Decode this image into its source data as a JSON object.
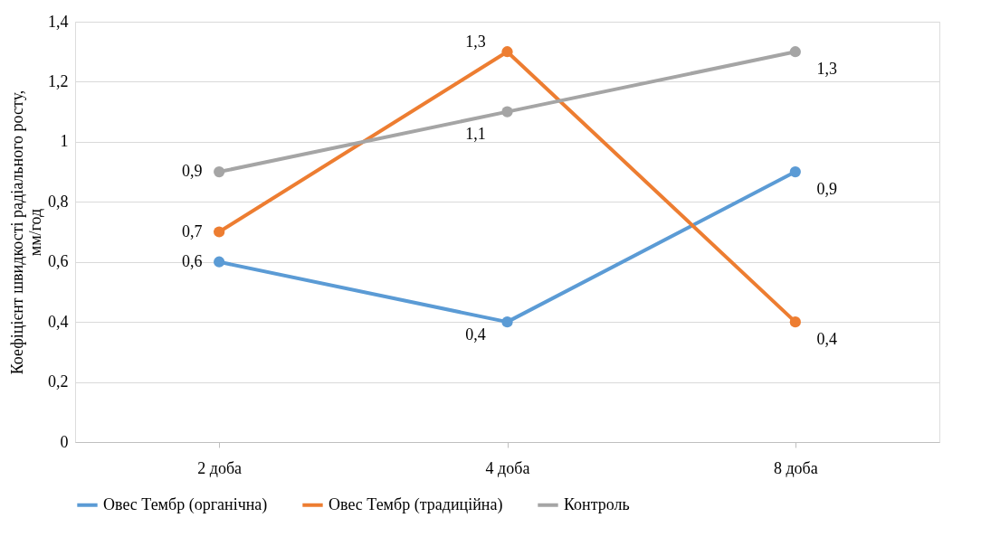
{
  "chart_data": {
    "type": "line",
    "ylabel": "Коефіцієнт швидкості радіального росту, мм/год",
    "categories": [
      "2 доба",
      "4 доба",
      "8 доба"
    ],
    "series": [
      {
        "name": "Овес Тембр (органічна)",
        "color": "#5b9bd5",
        "values": [
          0.6,
          0.4,
          0.9
        ],
        "value_labels": [
          "0,6",
          "0,4",
          "0,9"
        ]
      },
      {
        "name": "Овес Тембр (традиційна)",
        "color": "#ed7d31",
        "values": [
          0.7,
          1.3,
          0.4
        ],
        "value_labels": [
          "0,7",
          "1,3",
          "0,4"
        ]
      },
      {
        "name": "Контроль",
        "color": "#a5a5a5",
        "values": [
          0.9,
          1.1,
          1.3
        ],
        "value_labels": [
          "0,9",
          "1,1",
          "1,3"
        ]
      }
    ],
    "ylim": [
      0,
      1.4
    ],
    "yticks": [
      0,
      {
        "value": 0.2,
        "label": "0,2"
      },
      {
        "value": 0.4,
        "label": "0,4"
      },
      {
        "value": 0.6,
        "label": "0,6"
      },
      {
        "value": 0.8,
        "label": "0,8"
      },
      1,
      {
        "value": 1.2,
        "label": "1,2"
      },
      {
        "value": 1.4,
        "label": "1,4"
      }
    ],
    "grid": "y",
    "legend": "bottom",
    "marker": "circle",
    "line_style": "solid"
  }
}
